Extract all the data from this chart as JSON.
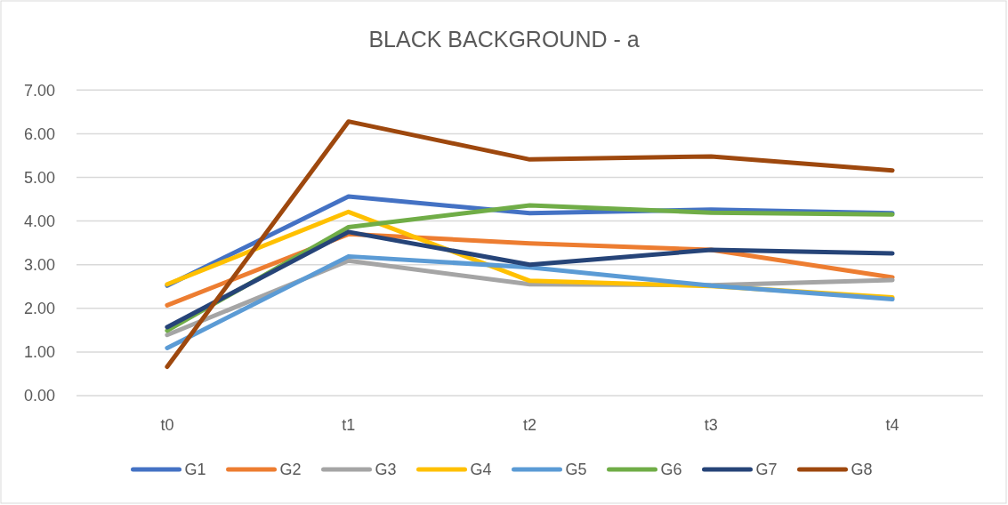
{
  "chart_data": {
    "type": "line",
    "title": "BLACK BACKGROUND - a",
    "categories": [
      "t0",
      "t1",
      "t2",
      "t3",
      "t4"
    ],
    "ylim": [
      0,
      7
    ],
    "yticks": [
      {
        "value": 0,
        "label": "0.00"
      },
      {
        "value": 1,
        "label": "1.00"
      },
      {
        "value": 2,
        "label": "2.00"
      },
      {
        "value": 3,
        "label": "3.00"
      },
      {
        "value": 4,
        "label": "4.00"
      },
      {
        "value": 5,
        "label": "5.00"
      },
      {
        "value": 6,
        "label": "6.00"
      },
      {
        "value": 7,
        "label": "7.00"
      }
    ],
    "grid": "y",
    "legend": "bottom",
    "series": [
      {
        "name": "G1",
        "color": "#4472c4",
        "values": [
          2.52,
          4.56,
          4.18,
          4.26,
          4.18
        ]
      },
      {
        "name": "G2",
        "color": "#ed7d31",
        "values": [
          2.07,
          3.7,
          3.49,
          3.34,
          2.71
        ]
      },
      {
        "name": "G3",
        "color": "#a5a5a5",
        "values": [
          1.39,
          3.09,
          2.55,
          2.53,
          2.65
        ]
      },
      {
        "name": "G4",
        "color": "#ffc000",
        "values": [
          2.55,
          4.21,
          2.63,
          2.51,
          2.25
        ]
      },
      {
        "name": "G5",
        "color": "#5b9bd5",
        "values": [
          1.09,
          3.19,
          2.94,
          2.52,
          2.21
        ]
      },
      {
        "name": "G6",
        "color": "#70ad47",
        "values": [
          1.49,
          3.86,
          4.36,
          4.19,
          4.15
        ]
      },
      {
        "name": "G7",
        "color": "#264478",
        "values": [
          1.57,
          3.75,
          3.0,
          3.34,
          3.26
        ]
      },
      {
        "name": "G8",
        "color": "#9e480e",
        "values": [
          0.66,
          6.28,
          5.41,
          5.48,
          5.16
        ]
      }
    ]
  }
}
